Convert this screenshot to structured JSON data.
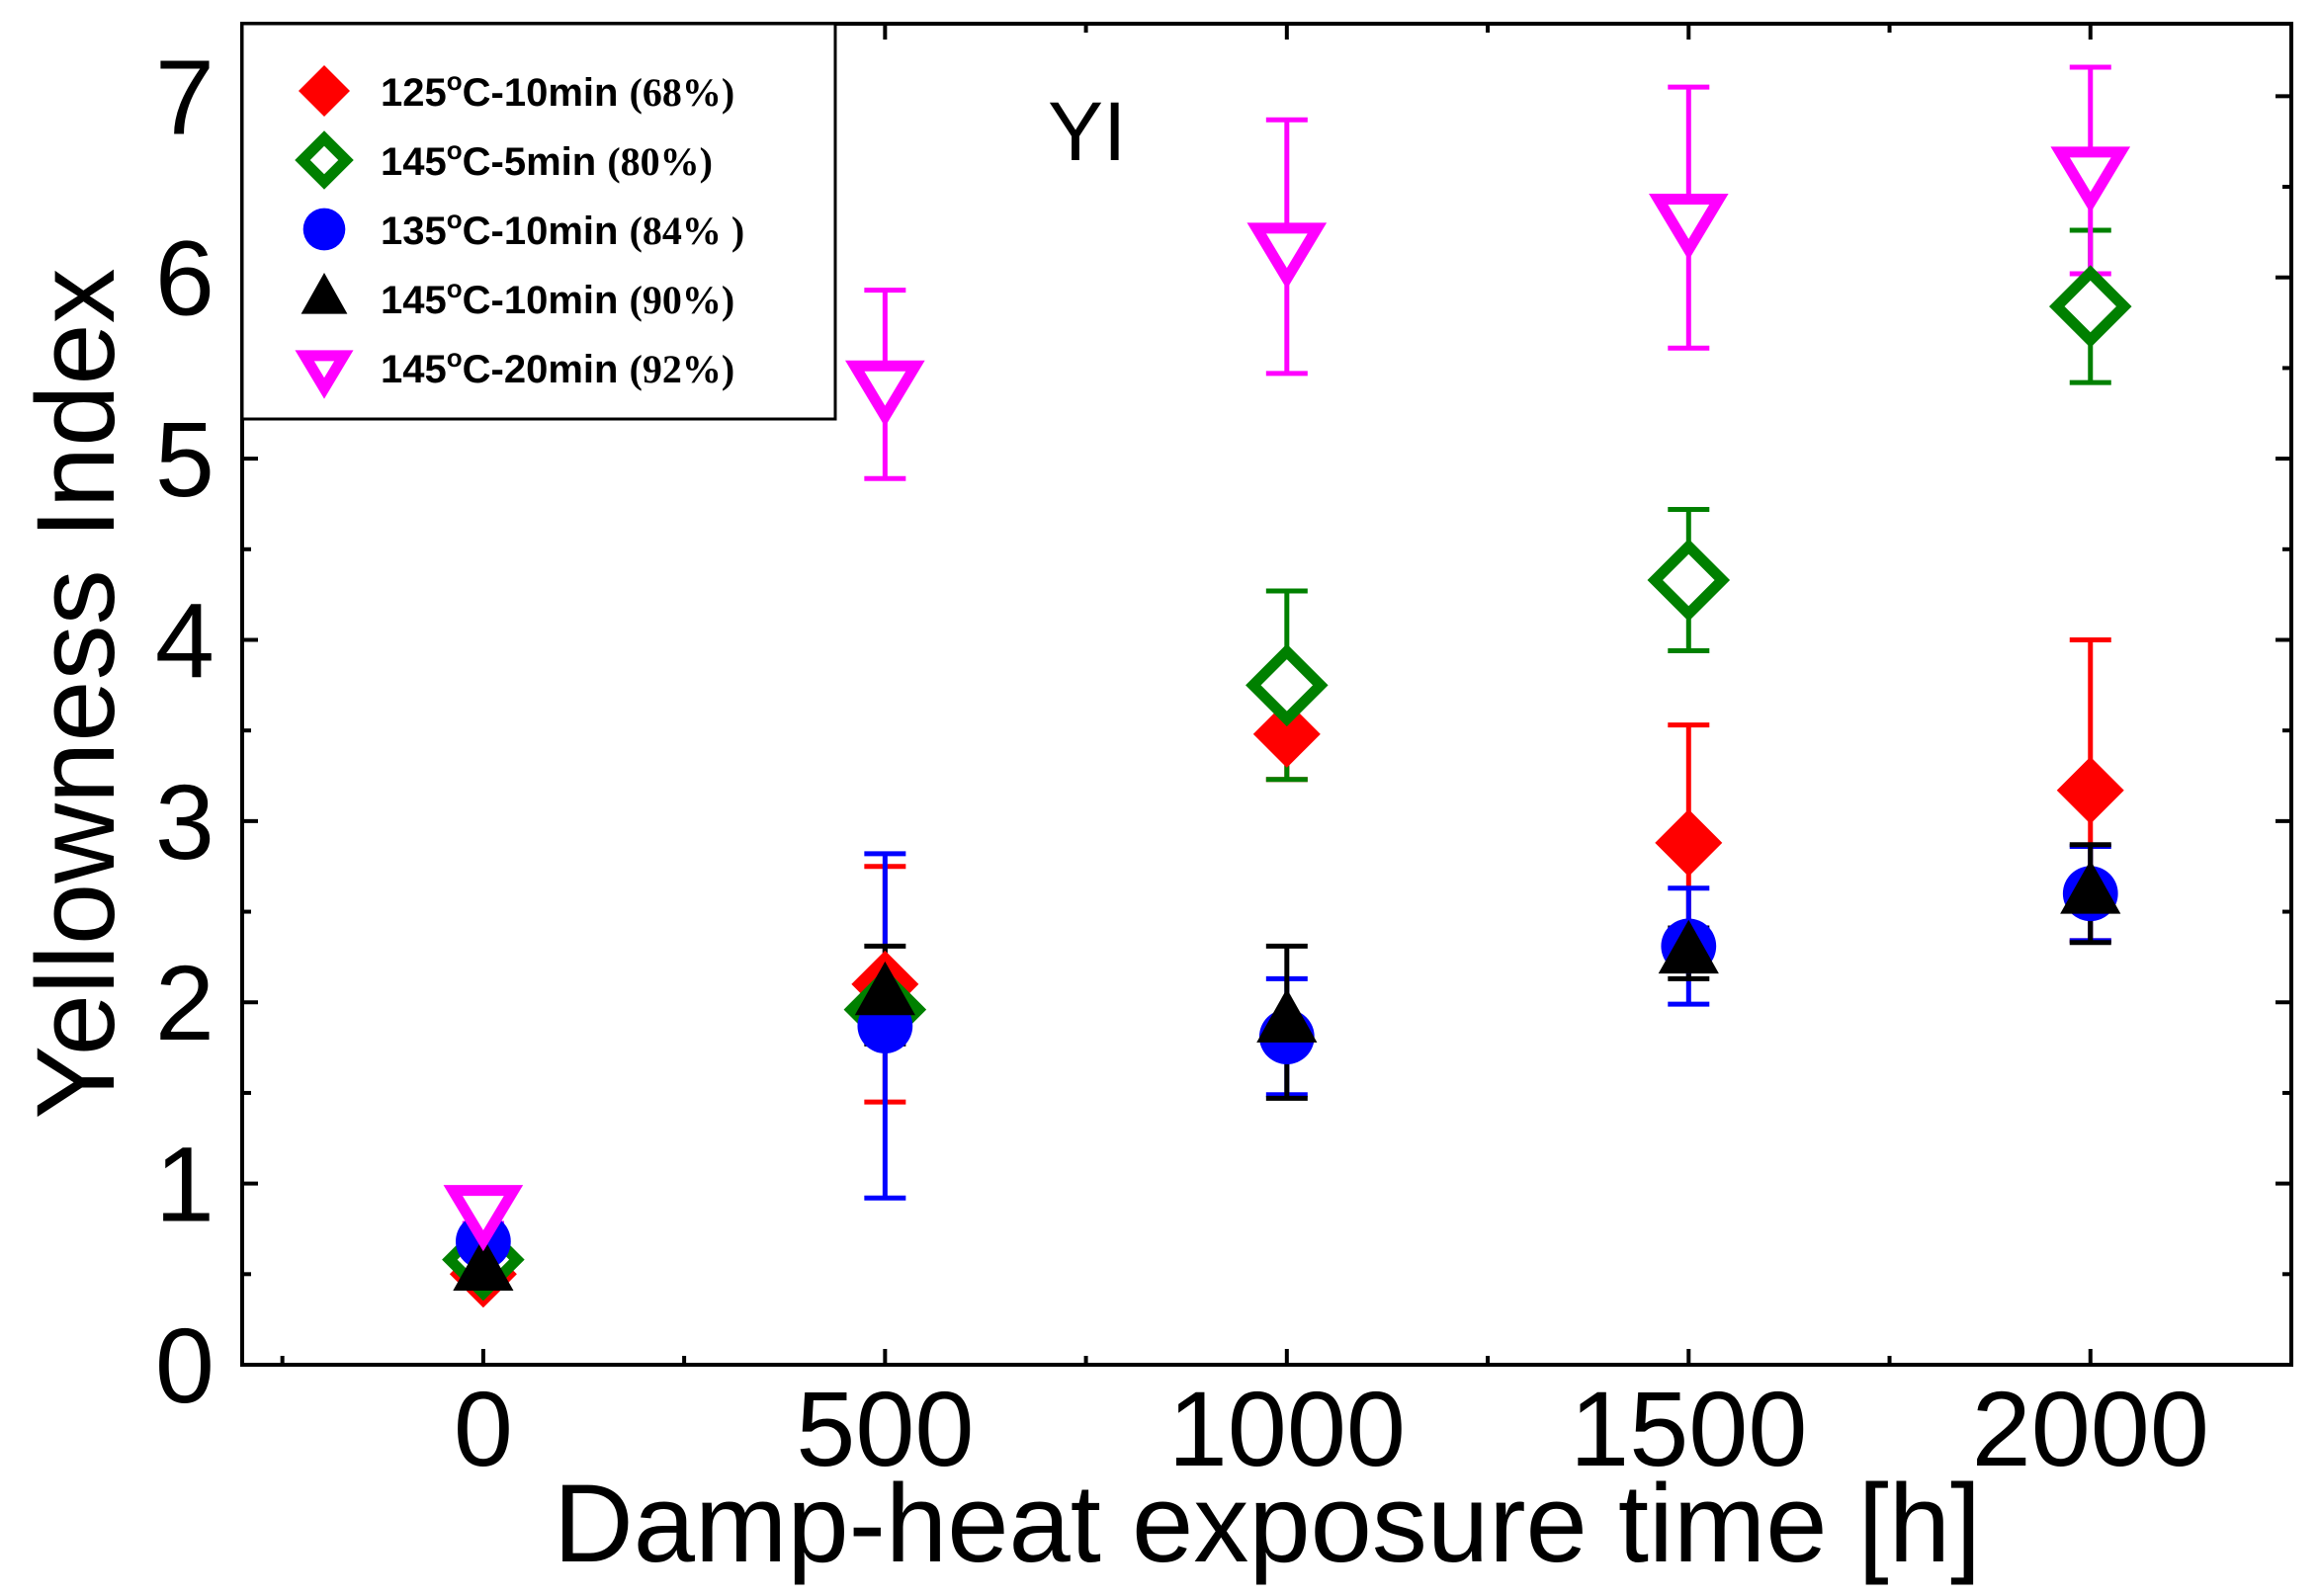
{
  "chart_data": {
    "type": "scatter",
    "title": "",
    "annotation": "YI",
    "xlabel": "Damp-heat exposure time [h]",
    "ylabel": "Yellowness Index",
    "xlim": [
      -300,
      2250
    ],
    "ylim": [
      0,
      7.4
    ],
    "grid": false,
    "legend_position": "top-left",
    "x_ticks": [
      0,
      500,
      1000,
      1500,
      2000
    ],
    "x_minor_ticks": [
      -250,
      250,
      750,
      1250,
      1750
    ],
    "y_ticks": [
      0,
      1,
      2,
      3,
      4,
      5,
      6,
      7
    ],
    "x_tick_labels": [
      "0",
      "500",
      "1000",
      "1500",
      "2000"
    ],
    "y_tick_labels": [
      "0",
      "1",
      "2",
      "3",
      "4",
      "5",
      "6",
      "7"
    ],
    "series": [
      {
        "name": "125°C-10min (68%)",
        "label_main": "125",
        "label_deg": "o",
        "label_rest": "C-10min",
        "label_pct": "(68%)",
        "marker": "diamond",
        "filled": true,
        "color": "#ff0000",
        "x": [
          0,
          500,
          1000,
          1500,
          2000
        ],
        "y": [
          0.5,
          2.1,
          3.48,
          2.88,
          3.17
        ],
        "err": [
          0.06,
          0.65,
          0.25,
          0.65,
          0.83
        ]
      },
      {
        "name": "145°C-5min (80%)",
        "label_main": "145",
        "label_deg": "o",
        "label_rest": "C-5min",
        "label_pct": "(80%)",
        "marker": "diamond",
        "filled": false,
        "color": "#008000",
        "x": [
          0,
          500,
          1000,
          1500,
          2000
        ],
        "y": [
          0.58,
          1.96,
          3.75,
          4.33,
          5.84
        ],
        "err": [
          0.08,
          0.16,
          0.52,
          0.39,
          0.42
        ]
      },
      {
        "name": "135°C-10min (84% )",
        "label_main": "135",
        "label_deg": "o",
        "label_rest": "C-10min",
        "label_pct": "(84% )",
        "marker": "circle",
        "filled": true,
        "color": "#0000ff",
        "x": [
          0,
          500,
          1000,
          1500,
          2000
        ],
        "y": [
          0.68,
          1.87,
          1.81,
          2.31,
          2.6
        ],
        "err": [
          0.1,
          0.95,
          0.32,
          0.32,
          0.26
        ]
      },
      {
        "name": "145°C-10min (90%)",
        "label_main": "145",
        "label_deg": "o",
        "label_rest": "C-10min",
        "label_pct": "(90%)",
        "marker": "triangle-up",
        "filled": true,
        "color": "#000000",
        "x": [
          0,
          500,
          1000,
          1500,
          2000
        ],
        "y": [
          0.52,
          2.04,
          1.89,
          2.27,
          2.6
        ],
        "err": [
          0.07,
          0.27,
          0.42,
          0.14,
          0.27
        ]
      },
      {
        "name": "145°C-20min (92%)",
        "label_main": "145",
        "label_deg": "o",
        "label_rest": "C-20min",
        "label_pct": "(92%)",
        "marker": "triangle-down",
        "filled": false,
        "color": "#ff00ff",
        "x": [
          0,
          500,
          1000,
          1500,
          2000
        ],
        "y": [
          0.86,
          5.41,
          6.17,
          6.33,
          6.59
        ],
        "err": [
          0.08,
          0.52,
          0.7,
          0.72,
          0.57
        ]
      }
    ]
  }
}
